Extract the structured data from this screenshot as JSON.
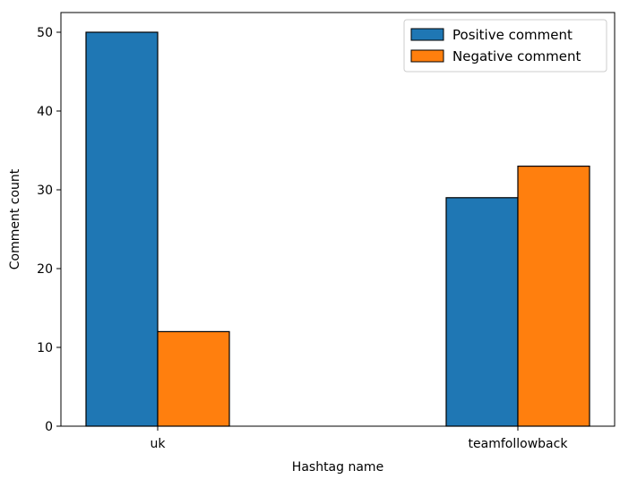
{
  "chart_data": {
    "type": "bar",
    "categories": [
      "uk",
      "teamfollowback"
    ],
    "series": [
      {
        "name": "Positive comment",
        "values": [
          50,
          29
        ],
        "color": "#1f77b4"
      },
      {
        "name": "Negative comment",
        "values": [
          12,
          33
        ],
        "color": "#ff7f0e"
      }
    ],
    "xlabel": "Hashtag name",
    "ylabel": "Comment count",
    "ylim": [
      0,
      52.5
    ],
    "yticks": [
      0,
      10,
      20,
      30,
      40,
      50
    ],
    "grid": false,
    "legend_position": "top-right",
    "edge_color": "#000000"
  }
}
